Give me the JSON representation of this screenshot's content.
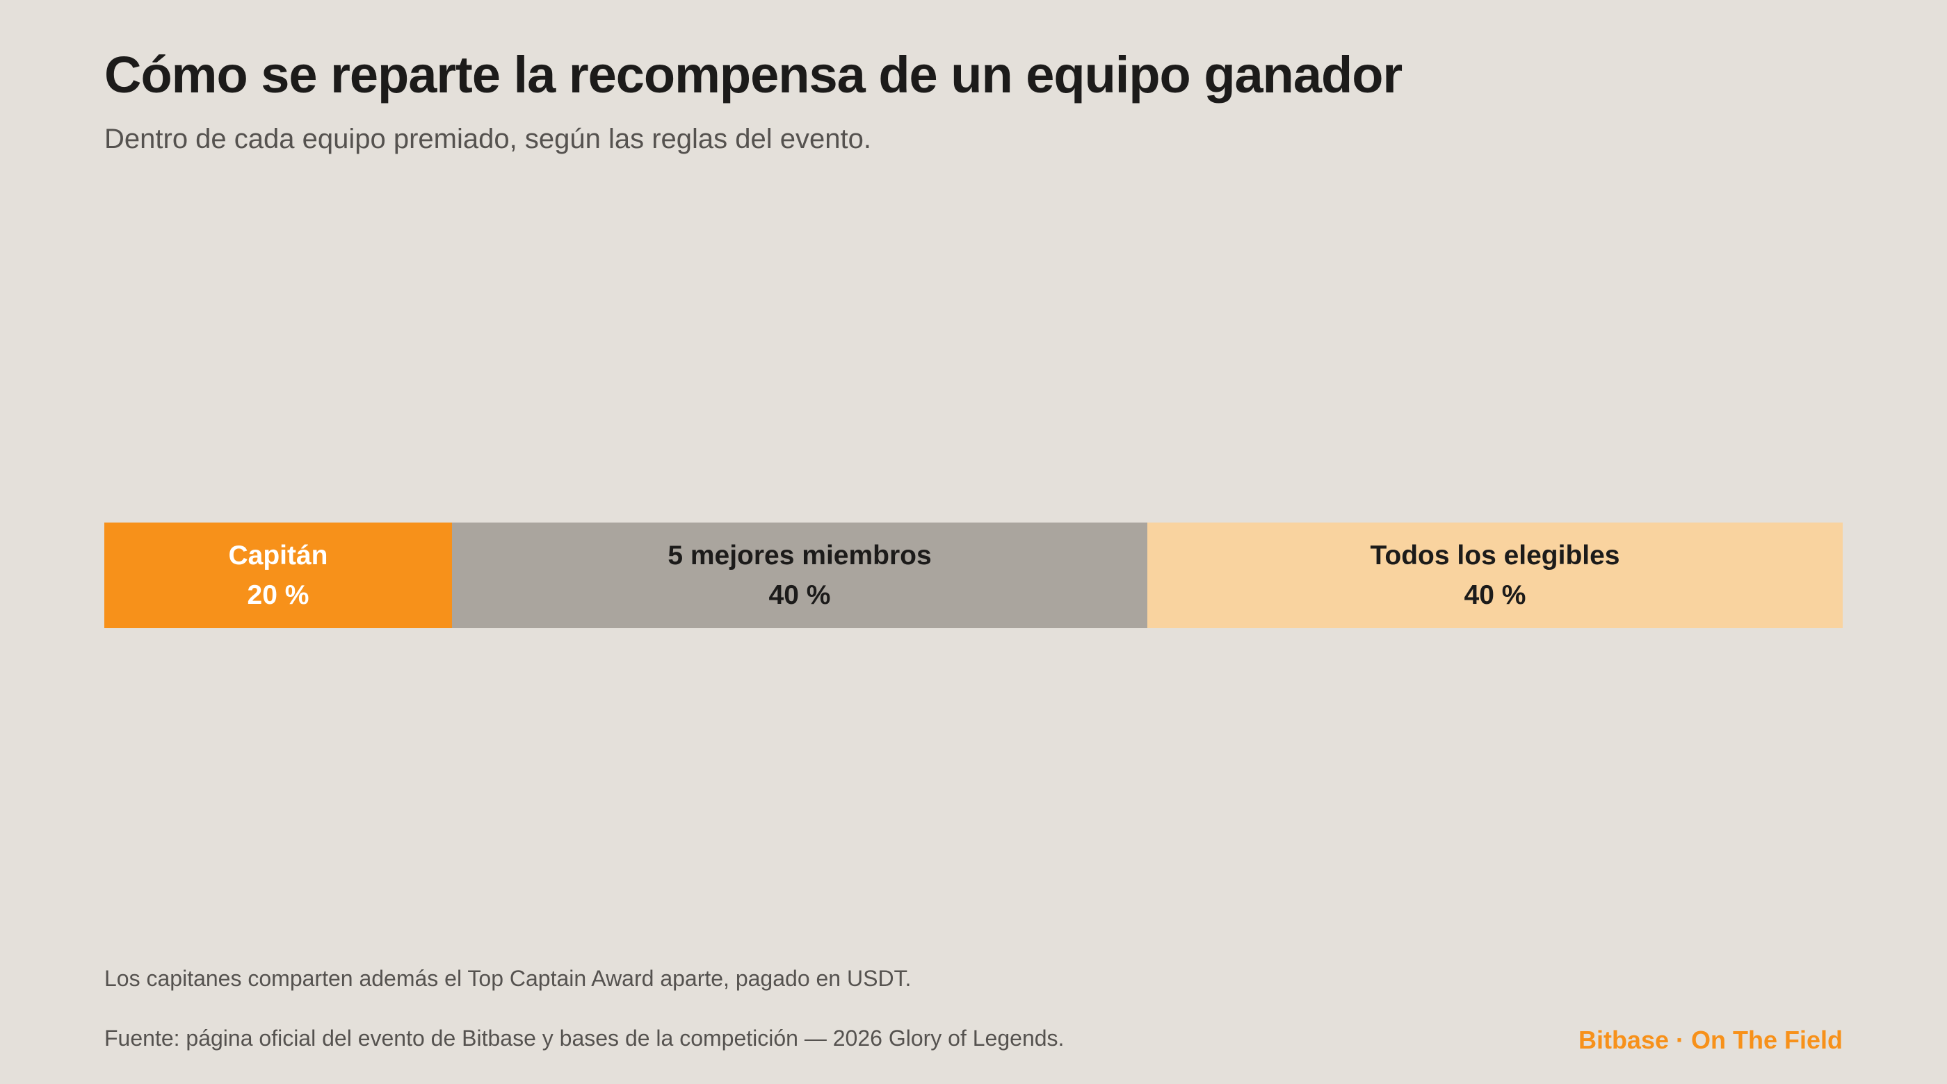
{
  "title": "Cómo se reparte la recompensa de un equipo ganador",
  "subtitle": "Dentro de cada equipo premiado, según las reglas del evento.",
  "chart_data": {
    "type": "bar",
    "orientation": "horizontal-stacked",
    "unit": "%",
    "total": 100,
    "segments": [
      {
        "label": "Capitán",
        "value": 20,
        "value_label": "20 %",
        "color": "#f7911a",
        "text_color": "#ffffff"
      },
      {
        "label": "5 mejores miembros",
        "value": 40,
        "value_label": "40 %",
        "color": "#aaa59e",
        "text_color": "#1c1b1a"
      },
      {
        "label": "Todos los elegibles",
        "value": 40,
        "value_label": "40 %",
        "color": "#f9d39f",
        "text_color": "#1c1b1a"
      }
    ],
    "grid": false,
    "legend": "none"
  },
  "footer": {
    "note": "Los capitanes comparten además el Top Captain Award aparte, pagado en USDT.",
    "source": "Fuente: página oficial del evento de Bitbase y bases de la competición — 2026 Glory of Legends.",
    "brand": "Bitbase · On The Field",
    "brand_color": "#f7911a"
  }
}
